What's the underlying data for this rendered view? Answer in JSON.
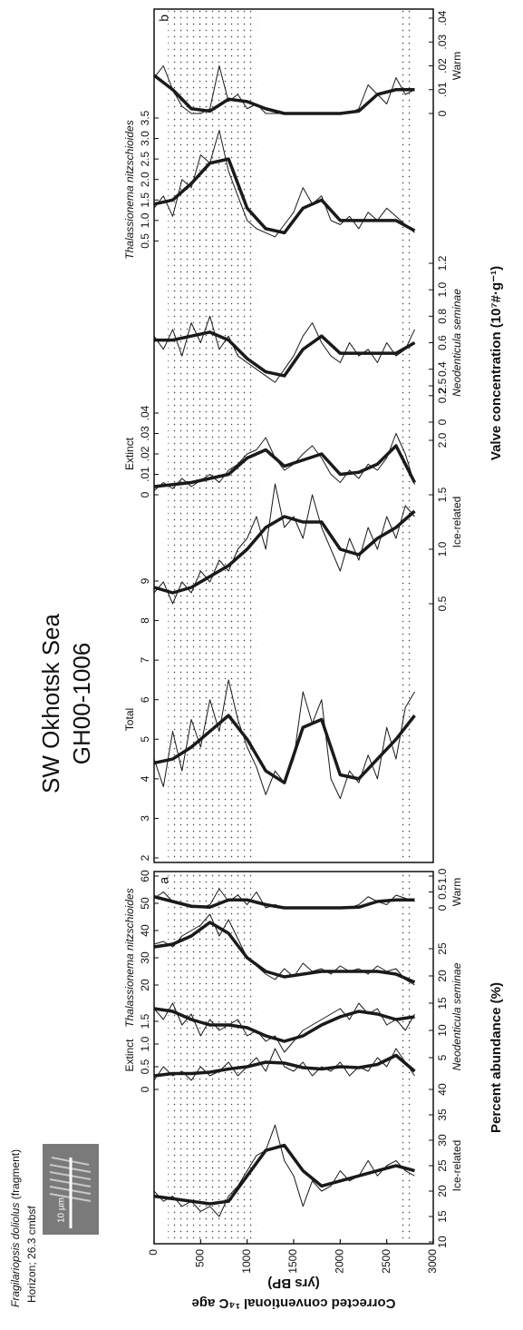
{
  "title": "SW Okhotsk Sea",
  "subtitle": "GH00-1006",
  "photo": {
    "caption": "Fragilariopsis doliolus",
    "caption_note": "(fragment)",
    "horizon": "Horizon; 26.3 cmbsf",
    "scale": "10 µm"
  },
  "chart_data": [
    {
      "type": "line",
      "panel_label": "a",
      "xlabel": "Percent abundance (%)",
      "ylabel": "Corrected conventional ¹⁴C age",
      "ylabel_unit": "(yrs BP)",
      "ylim": [
        0,
        3000
      ],
      "yticks": [
        0,
        500,
        1000,
        1500,
        2000,
        2500,
        3000
      ],
      "shaded": [
        [
          150,
          1100
        ],
        [
          2650,
          2800
        ]
      ],
      "ages": [
        0,
        100,
        200,
        300,
        400,
        500,
        600,
        700,
        800,
        900,
        1000,
        1100,
        1200,
        1300,
        1400,
        1500,
        1600,
        1700,
        1800,
        1900,
        2000,
        2100,
        2200,
        2300,
        2400,
        2500,
        2600,
        2700,
        2800
      ],
      "smooth_ages": [
        0,
        200,
        400,
        600,
        800,
        1000,
        1200,
        1400,
        1600,
        1800,
        2000,
        2200,
        2400,
        2600,
        2800
      ],
      "series": [
        {
          "name": "Ice-related",
          "italic": false,
          "color": "#1a1a1a",
          "xlim": [
            10,
            40
          ],
          "xticks": [
            10,
            15,
            20,
            25,
            30,
            35,
            40
          ],
          "values": [
            20,
            18,
            19,
            17,
            18,
            16,
            17,
            15,
            19,
            21,
            24,
            27,
            28,
            33,
            26,
            23,
            17,
            22,
            20,
            21,
            24,
            22,
            23,
            26,
            23,
            25,
            26,
            24,
            23
          ],
          "smooth": [
            19,
            18.5,
            18,
            17.5,
            18,
            23,
            28,
            29,
            24,
            21,
            22,
            23,
            24,
            25,
            24
          ]
        },
        {
          "name": "Extinct",
          "italic": false,
          "color": "#1a1a1a",
          "xlim": [
            0,
            1.5
          ],
          "xticks": [
            0,
            0.5,
            {
              "value": 1,
              "label": "1.0"
            },
            1.5
          ],
          "values": [
            0.2,
            0.5,
            0.3,
            0.4,
            0.2,
            0.5,
            0.3,
            0.4,
            0.6,
            0.3,
            0.5,
            0.7,
            0.4,
            0.9,
            0.5,
            0.4,
            0.6,
            0.3,
            0.5,
            0.4,
            0.6,
            0.3,
            0.5,
            0.4,
            0.7,
            0.5,
            0.9,
            0.6,
            0.3
          ],
          "smooth": [
            0.3,
            0.35,
            0.35,
            0.38,
            0.45,
            0.5,
            0.6,
            0.58,
            0.48,
            0.45,
            0.5,
            0.48,
            0.55,
            0.75,
            0.4
          ]
        },
        {
          "name": "Neodenticula seminae",
          "italic": true,
          "color": "#1a1a1a",
          "xlim": [
            0,
            25
          ],
          "xticks": [
            5,
            10,
            15,
            20,
            25
          ],
          "values": [
            14,
            12,
            15,
            11,
            13,
            9,
            12,
            10,
            11,
            12,
            9,
            10,
            8,
            9,
            6,
            8,
            10,
            11,
            12,
            13,
            14,
            12,
            15,
            13,
            14,
            11,
            12,
            10,
            13
          ],
          "smooth": [
            14,
            13.5,
            12,
            11,
            11,
            10.5,
            9,
            8,
            9,
            11,
            12.5,
            13.5,
            13,
            12,
            12.5
          ]
        },
        {
          "name": "Thalassionema nitzschioides",
          "italic": true,
          "color": "#1a1a1a",
          "xlim": [
            0,
            60
          ],
          "xticks": [
            20,
            30,
            40,
            50,
            60
          ],
          "values": [
            35,
            36,
            34,
            38,
            40,
            42,
            46,
            38,
            44,
            37,
            30,
            27,
            24,
            22,
            26,
            23,
            28,
            25,
            26,
            24,
            27,
            25,
            26,
            24,
            27,
            25,
            26,
            22,
            20
          ],
          "smooth": [
            34,
            35,
            38,
            43,
            39,
            30,
            25,
            23,
            24,
            25,
            25,
            25,
            25,
            24,
            21
          ]
        },
        {
          "name": "Warm",
          "italic": false,
          "color": "#1a1a1a",
          "xlim": [
            0,
            1
          ],
          "xticks": [
            0,
            0.5,
            {
              "value": 1,
              "label": "1.0"
            }
          ],
          "values": [
            0.3,
            0.5,
            0.2,
            0.1,
            0.05,
            0,
            0.1,
            0.6,
            0.2,
            0.4,
            0.1,
            0.5,
            0,
            0.1,
            0,
            0,
            0,
            0,
            0,
            0,
            0,
            0,
            0.1,
            0.35,
            0.2,
            0.1,
            0.4,
            0.3,
            0.2
          ],
          "smooth": [
            0.35,
            0.2,
            0.05,
            0.02,
            0.25,
            0.25,
            0.1,
            0,
            0,
            0,
            0,
            0.02,
            0.2,
            0.25,
            0.25
          ]
        }
      ]
    },
    {
      "type": "line",
      "panel_label": "b",
      "xlabel": "Valve concentration (10⁷#·g⁻¹)",
      "ylim": [
        0,
        3000
      ],
      "shaded": [
        [
          150,
          1100
        ],
        [
          2650,
          2800
        ]
      ],
      "ages": [
        0,
        100,
        200,
        300,
        400,
        500,
        600,
        700,
        800,
        900,
        1000,
        1100,
        1200,
        1300,
        1400,
        1500,
        1600,
        1700,
        1800,
        1900,
        2000,
        2100,
        2200,
        2300,
        2400,
        2500,
        2600,
        2700,
        2800
      ],
      "smooth_ages": [
        0,
        200,
        400,
        600,
        800,
        1000,
        1200,
        1400,
        1600,
        1800,
        2000,
        2200,
        2400,
        2600,
        2800
      ],
      "series": [
        {
          "name": "Total",
          "italic": false,
          "color": "#1a1a1a",
          "xlim": [
            2,
            9
          ],
          "xticks": [
            2,
            3,
            4,
            5,
            6,
            7,
            8,
            9
          ],
          "values": [
            4.5,
            3.8,
            5.2,
            4.2,
            5.5,
            4.8,
            6.0,
            5.2,
            6.5,
            5.5,
            4.8,
            4.3,
            3.6,
            4.2,
            3.9,
            4.5,
            6.2,
            5.4,
            6.0,
            4.0,
            3.5,
            4.2,
            3.9,
            4.6,
            4.0,
            5.3,
            4.5,
            5.8,
            6.2
          ],
          "smooth": [
            4.4,
            4.5,
            4.8,
            5.2,
            5.6,
            5.0,
            4.2,
            3.9,
            5.3,
            5.5,
            4.1,
            4.0,
            4.5,
            5.0,
            5.6
          ]
        },
        {
          "name": "Ice-related",
          "italic": false,
          "color": "#1a1a1a",
          "xlim": [
            0,
            2.5
          ],
          "xticks": [
            0.5,
            {
              "value": 1,
              "label": "1.0"
            },
            1.5,
            {
              "value": 2,
              "label": "2.0"
            },
            2.5
          ],
          "values": [
            0.6,
            0.7,
            0.5,
            0.7,
            0.6,
            0.8,
            0.7,
            0.9,
            0.8,
            1.0,
            1.1,
            1.3,
            1.0,
            1.6,
            1.2,
            1.3,
            1.1,
            1.5,
            1.2,
            1.0,
            0.8,
            1.1,
            0.9,
            1.2,
            1.0,
            1.3,
            1.1,
            1.4,
            1.3
          ],
          "smooth": [
            0.65,
            0.6,
            0.65,
            0.75,
            0.85,
            1.0,
            1.2,
            1.3,
            1.25,
            1.25,
            1.0,
            0.95,
            1.1,
            1.2,
            1.35
          ]
        },
        {
          "name": "Extinct",
          "italic": false,
          "color": "#1a1a1a",
          "xlim": [
            0,
            0.04
          ],
          "xticks": [
            0,
            {
              "value": 0.01,
              "label": ".01"
            },
            {
              "value": 0.02,
              "label": ".02"
            },
            {
              "value": 0.03,
              "label": ".03"
            },
            {
              "value": 0.04,
              "label": ".04"
            }
          ],
          "values": [
            0.002,
            0.006,
            0.003,
            0.008,
            0.004,
            0.007,
            0.01,
            0.006,
            0.012,
            0.015,
            0.02,
            0.022,
            0.028,
            0.018,
            0.012,
            0.015,
            0.02,
            0.024,
            0.018,
            0.01,
            0.006,
            0.012,
            0.008,
            0.015,
            0.012,
            0.018,
            0.03,
            0.02,
            0.005
          ],
          "smooth": [
            0.004,
            0.005,
            0.006,
            0.008,
            0.01,
            0.018,
            0.022,
            0.014,
            0.017,
            0.02,
            0.01,
            0.011,
            0.015,
            0.024,
            0.006
          ]
        },
        {
          "name": "Neodenticula seminae",
          "italic": true,
          "color": "#1a1a1a",
          "xlim": [
            0,
            1.2
          ],
          "xticks": [
            0,
            0.2,
            0.4,
            0.6,
            0.8,
            {
              "value": 1,
              "label": "1.0"
            },
            1.2
          ],
          "values": [
            0.65,
            0.55,
            0.7,
            0.5,
            0.75,
            0.6,
            0.8,
            0.55,
            0.65,
            0.5,
            0.45,
            0.4,
            0.35,
            0.3,
            0.4,
            0.5,
            0.65,
            0.75,
            0.6,
            0.5,
            0.45,
            0.6,
            0.5,
            0.55,
            0.45,
            0.6,
            0.5,
            0.55,
            0.7
          ],
          "smooth": [
            0.62,
            0.62,
            0.65,
            0.68,
            0.62,
            0.48,
            0.38,
            0.35,
            0.55,
            0.65,
            0.52,
            0.52,
            0.52,
            0.52,
            0.6
          ]
        },
        {
          "name": "Thalassionema nitzschioides",
          "italic": true,
          "color": "#1a1a1a",
          "xlim": [
            0,
            3.5
          ],
          "xticks": [
            0.5,
            {
              "value": 1,
              "label": "1.0"
            },
            1.5,
            {
              "value": 2,
              "label": "2.0"
            },
            2.5,
            {
              "value": 3,
              "label": "3.0"
            },
            3.5
          ],
          "values": [
            1.3,
            1.6,
            1.1,
            2.0,
            1.8,
            2.6,
            2.4,
            3.2,
            2.2,
            1.6,
            1.0,
            0.8,
            0.7,
            0.6,
            0.9,
            1.2,
            1.8,
            1.4,
            1.6,
            1.0,
            0.9,
            1.1,
            0.8,
            1.2,
            1.0,
            1.3,
            1.1,
            0.9,
            0.7
          ],
          "smooth": [
            1.4,
            1.5,
            1.9,
            2.4,
            2.5,
            1.3,
            0.8,
            0.7,
            1.3,
            1.5,
            1.0,
            1.0,
            1.0,
            1.0,
            0.75
          ]
        },
        {
          "name": "Warm",
          "italic": false,
          "color": "#1a1a1a",
          "xlim": [
            0,
            0.04
          ],
          "xticks": [
            0,
            {
              "value": 0.01,
              "label": ".01"
            },
            {
              "value": 0.02,
              "label": ".02"
            },
            {
              "value": 0.03,
              "label": ".03"
            },
            {
              "value": 0.04,
              "label": ".04"
            }
          ],
          "values": [
            0.015,
            0.02,
            0.01,
            0.003,
            0,
            0,
            0.002,
            0.02,
            0.005,
            0.008,
            0.002,
            0.004,
            0,
            0,
            0,
            0,
            0,
            0,
            0,
            0,
            0,
            0,
            0.002,
            0.012,
            0.008,
            0.004,
            0.015,
            0.008,
            0.01
          ],
          "smooth": [
            0.016,
            0.01,
            0.002,
            0.001,
            0.006,
            0.005,
            0.002,
            0,
            0,
            0,
            0,
            0.001,
            0.008,
            0.01,
            0.01
          ]
        }
      ]
    }
  ]
}
